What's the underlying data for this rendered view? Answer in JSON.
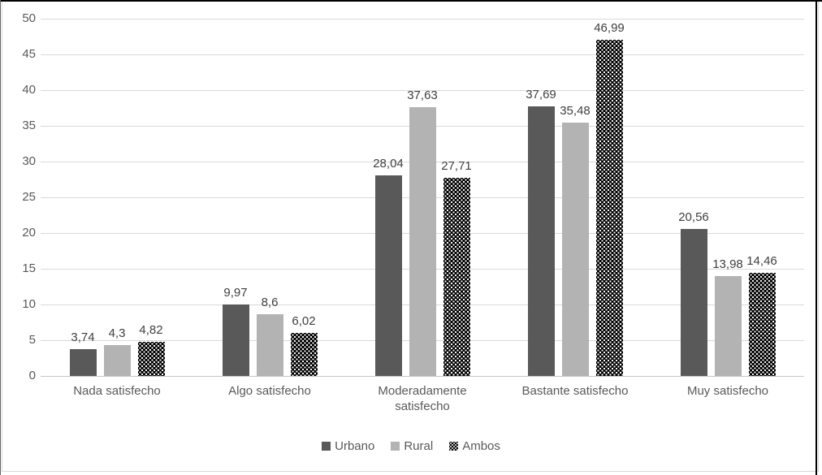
{
  "chart_data": {
    "type": "bar",
    "title": "",
    "xlabel": "",
    "ylabel": "",
    "ylim": [
      0,
      50
    ],
    "yticks": [
      0,
      5,
      10,
      15,
      20,
      25,
      30,
      35,
      40,
      45,
      50
    ],
    "grid": true,
    "legend_position": "bottom",
    "categories": [
      "Nada satisfecho",
      "Algo satisfecho",
      "Moderadamente satisfecho",
      "Bastante satisfecho",
      "Muy satisfecho"
    ],
    "series": [
      {
        "name": "Urbano",
        "color": "#595959",
        "pattern": "solid",
        "values": [
          3.74,
          9.97,
          28.04,
          37.69,
          20.56
        ],
        "labels": [
          "3,74",
          "9,97",
          "28,04",
          "37,69",
          "20,56"
        ]
      },
      {
        "name": "Rural",
        "color": "#b3b3b3",
        "pattern": "solid",
        "values": [
          4.3,
          8.6,
          37.63,
          35.48,
          13.98
        ],
        "labels": [
          "4,3",
          "8,6",
          "37,63",
          "35,48",
          "13,98"
        ]
      },
      {
        "name": "Ambos",
        "color": "#000000",
        "pattern": "dotted-black",
        "values": [
          4.82,
          6.02,
          27.71,
          46.99,
          14.46
        ],
        "labels": [
          "4,82",
          "6,02",
          "27,71",
          "46,99",
          "14,46"
        ]
      }
    ],
    "colors": {
      "gridline": "#d9d9d9",
      "axis_text": "#595959",
      "value_text": "#404040"
    }
  }
}
